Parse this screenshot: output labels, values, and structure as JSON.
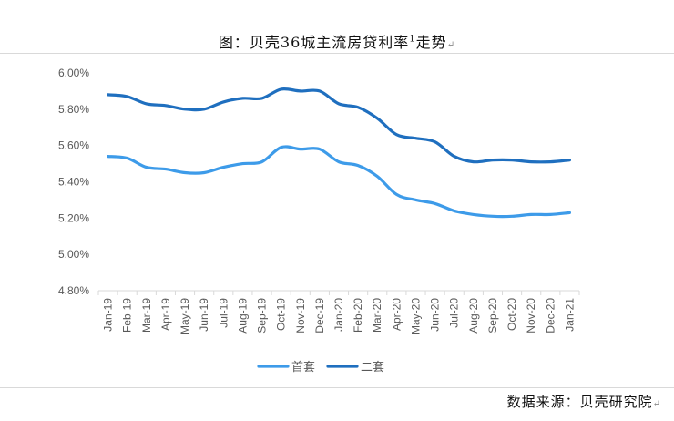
{
  "title": {
    "text": "图：贝壳36城主流房贷利率",
    "sup": "1",
    "suffix": "走势"
  },
  "source": "数据来源：贝壳研究院",
  "colors": {
    "first_home": "#3d9be9",
    "second_home": "#1f6fbf",
    "axis": "#d9d9d9",
    "label": "#595959"
  },
  "chart_data": {
    "type": "line",
    "categories": [
      "Jan-19",
      "Feb-19",
      "Mar-19",
      "Apr-19",
      "May-19",
      "Jun-19",
      "Jul-19",
      "Aug-19",
      "Sep-19",
      "Oct-19",
      "Nov-19",
      "Dec-19",
      "Jan-20",
      "Feb-20",
      "Mar-20",
      "Apr-20",
      "May-20",
      "Jun-20",
      "Jul-20",
      "Aug-20",
      "Sep-20",
      "Oct-20",
      "Nov-20",
      "Dec-20",
      "Jan-21"
    ],
    "series": [
      {
        "name": "首套",
        "color": "#3d9be9",
        "values": [
          5.54,
          5.53,
          5.48,
          5.47,
          5.45,
          5.45,
          5.48,
          5.5,
          5.51,
          5.59,
          5.58,
          5.58,
          5.51,
          5.49,
          5.43,
          5.33,
          5.3,
          5.28,
          5.24,
          5.22,
          5.21,
          5.21,
          5.22,
          5.22,
          5.23
        ]
      },
      {
        "name": "二套",
        "color": "#1f6fbf",
        "values": [
          5.88,
          5.87,
          5.83,
          5.82,
          5.8,
          5.8,
          5.84,
          5.86,
          5.86,
          5.91,
          5.9,
          5.9,
          5.83,
          5.81,
          5.75,
          5.66,
          5.64,
          5.62,
          5.54,
          5.51,
          5.52,
          5.52,
          5.51,
          5.51,
          5.52
        ]
      }
    ],
    "yticks": [
      "6.00%",
      "5.80%",
      "5.60%",
      "5.40%",
      "5.20%",
      "5.00%",
      "4.80%"
    ],
    "ylim": [
      4.8,
      6.0
    ],
    "grid": false,
    "legend_position": "bottom"
  }
}
